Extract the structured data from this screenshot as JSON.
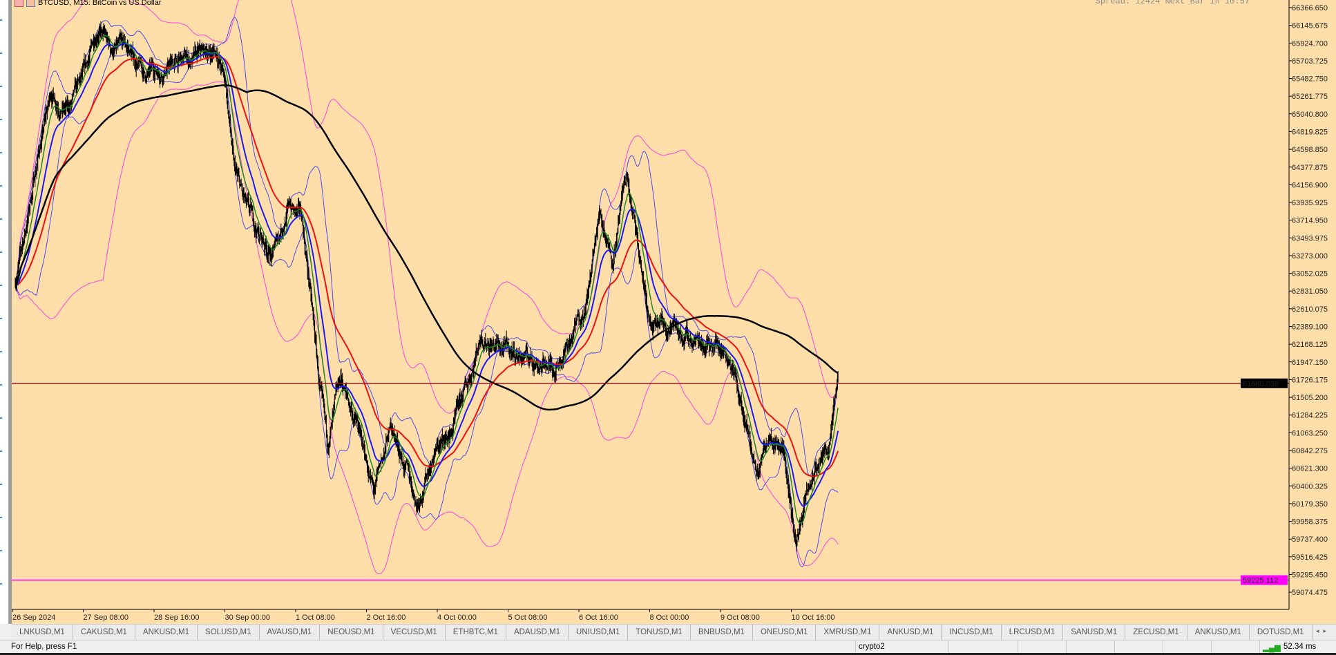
{
  "chart": {
    "title": "BTCUSD, M15:  BitCoin vs US Dollar",
    "spread_info": "Spread: 12424 Next Bar in 10:57",
    "icons": [
      "chart-grid-icon",
      "chart-properties-icon"
    ]
  },
  "chart_data": {
    "type": "candlestick",
    "symbol": "BTCUSD",
    "timeframe": "M15",
    "y_ticks": [
      "66366.650",
      "66145.675",
      "65924.700",
      "65703.725",
      "65482.750",
      "65261.775",
      "65040.800",
      "64819.825",
      "64598.850",
      "64377.875",
      "64156.900",
      "63935.925",
      "63714.950",
      "63493.975",
      "63273.000",
      "63052.025",
      "62831.050",
      "62610.075",
      "62389.100",
      "62168.125",
      "61947.150",
      "61726.175",
      "61505.200",
      "61284.225",
      "61063.250",
      "60842.275",
      "60621.300",
      "60400.325",
      "60179.350",
      "59958.375",
      "59737.400",
      "59516.425",
      "59295.450",
      "59074.475"
    ],
    "ylim": [
      58950,
      66460
    ],
    "x_ticks": [
      "26 Sep 2024",
      "27 Sep 08:00",
      "28 Sep 16:00",
      "30 Sep 00:00",
      "1 Oct 08:00",
      "2 Oct 16:00",
      "4 Oct 00:00",
      "5 Oct 08:00",
      "6 Oct 16:00",
      "8 Oct 00:00",
      "9 Oct 08:00",
      "10 Oct 16:00"
    ],
    "price_path": [
      [
        "2024-09-26 01:15",
        62957
      ],
      [
        "2024-09-26 06:00",
        63594
      ],
      [
        "2024-09-26 11:45",
        64550
      ],
      [
        "2024-09-26 17:30",
        65293
      ],
      [
        "2024-09-27 01:15",
        65081
      ],
      [
        "2024-09-27 09:00",
        65505
      ],
      [
        "2024-09-27 14:45",
        66142
      ],
      [
        "2024-09-27 20:30",
        65824
      ],
      [
        "2024-09-28 04:15",
        65824
      ],
      [
        "2024-09-28 12:00",
        65505
      ],
      [
        "2024-09-28 23:30",
        65665
      ],
      [
        "2024-09-29 11:00",
        65718
      ],
      [
        "2024-09-29 20:30",
        65824
      ],
      [
        "2024-09-30 00:30",
        65399
      ],
      [
        "2024-09-30 04:15",
        64337
      ],
      [
        "2024-09-30 10:00",
        63806
      ],
      [
        "2024-09-30 14:00",
        63594
      ],
      [
        "2024-09-30 21:30",
        63277
      ],
      [
        "2024-10-01 05:15",
        63913
      ],
      [
        "2024-10-01 11:00",
        63700
      ],
      [
        "2024-10-01 15:00",
        62745
      ],
      [
        "2024-10-01 18:45",
        61683
      ],
      [
        "2024-10-01 22:30",
        60836
      ],
      [
        "2024-10-02 04:30",
        61683
      ],
      [
        "2024-10-02 12:00",
        61152
      ],
      [
        "2024-10-02 19:45",
        60303
      ],
      [
        "2024-10-03 03:30",
        61152
      ],
      [
        "2024-10-03 15:00",
        60196
      ],
      [
        "2024-10-03 22:45",
        60836
      ],
      [
        "2024-10-04 06:30",
        61046
      ],
      [
        "2024-10-04 14:15",
        61683
      ],
      [
        "2024-10-04 20:00",
        62320
      ],
      [
        "2024-10-05 05:30",
        62108
      ],
      [
        "2024-10-05 17:00",
        62001
      ],
      [
        "2024-10-06 04:45",
        61895
      ],
      [
        "2024-10-06 12:30",
        62214
      ],
      [
        "2024-10-06 20:00",
        62745
      ],
      [
        "2024-10-07 01:45",
        63806
      ],
      [
        "2024-10-07 07:30",
        63277
      ],
      [
        "2024-10-07 14:00",
        64231
      ],
      [
        "2024-10-07 19:15",
        63277
      ],
      [
        "2024-10-08 01:00",
        62320
      ],
      [
        "2024-10-08 10:30",
        62426
      ],
      [
        "2024-10-08 18:15",
        62214
      ],
      [
        "2024-10-09 05:45",
        62214
      ],
      [
        "2024-10-09 13:30",
        62001
      ],
      [
        "2024-10-09 19:15",
        61152
      ],
      [
        "2024-10-10 01:00",
        60515
      ],
      [
        "2024-10-10 06:45",
        61152
      ],
      [
        "2024-10-10 12:30",
        60939
      ],
      [
        "2024-10-10 18:30",
        59665
      ],
      [
        "2024-10-10 22:15",
        60196
      ],
      [
        "2024-10-11 04:00",
        60621
      ],
      [
        "2024-10-11 09:45",
        60939
      ],
      [
        "2024-10-11 13:30",
        61680
      ]
    ],
    "price_lines": [
      {
        "label": "61680.038",
        "value": 61680.038,
        "color": "#8b1a1a",
        "label_bg": "#000000",
        "label_fg": "#ffffff"
      },
      {
        "label": "59225.112",
        "value": 59225.112,
        "color": "#ff00ff",
        "label_bg": "#ff00ff",
        "label_fg": "#ffffff"
      }
    ],
    "colors": {
      "background": "#ffdeaa",
      "candles": "#000000",
      "ma_fast": "#1e8a1e",
      "ma_mid": "#1a1aee",
      "ma_slow": "#ee1111",
      "ma_long": "#000000",
      "bands_inner": "#4a4ae8",
      "bands_outer": "#ff44dd"
    }
  },
  "tabs": [
    "LNKUSD,M1",
    "CAKUSD,M1",
    "ANKUSD,M1",
    "SOLUSD,M1",
    "AVAUSD,M1",
    "NEOUSD,M1",
    "VECUSD,M1",
    "ETHBTC,M1",
    "ADAUSD,M1",
    "UNIUSD,M1",
    "TONUSD,M1",
    "BNBUSD,M1",
    "ONEUSD,M1",
    "XMRUSD,M1",
    "ANKUSD,M1",
    "INCUSD,M1",
    "LRCUSD,M1",
    "SANUSD,M1",
    "ZECUSD,M1",
    "ANKUSD,M1",
    "DOTUSD,M1"
  ],
  "status": {
    "help": "For Help, press F1",
    "profile": "crypto2",
    "ping": "52.34 ms"
  }
}
